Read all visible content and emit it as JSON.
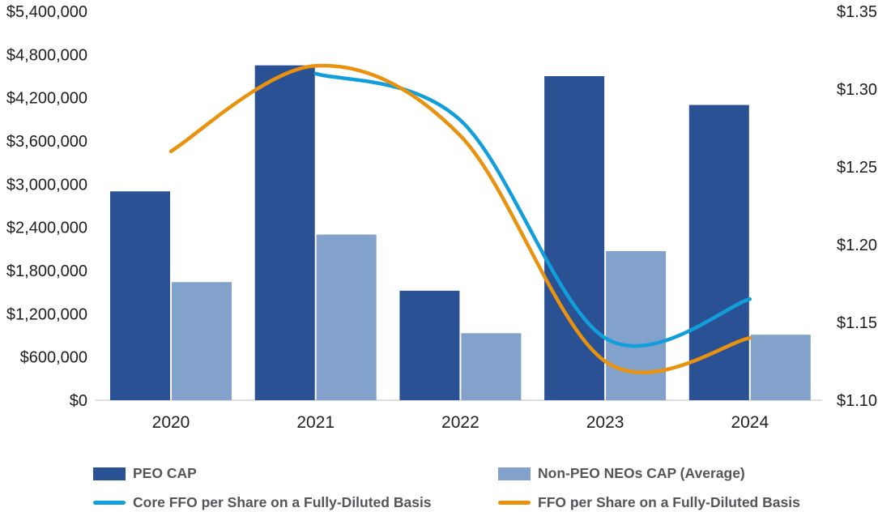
{
  "chart_data": {
    "type": "combo-bar-line",
    "title": "",
    "categories": [
      "2020",
      "2021",
      "2022",
      "2023",
      "2024"
    ],
    "series": [
      {
        "name": "PEO CAP",
        "type": "bar",
        "axis": "left",
        "color": "#2A5193",
        "values": [
          2900000,
          4650000,
          1520000,
          4500000,
          4100000
        ]
      },
      {
        "name": "Non-PEO NEOs CAP (Average)",
        "type": "bar",
        "axis": "left",
        "color": "#82A2CC",
        "values": [
          1640000,
          2300000,
          930000,
          2070000,
          910000
        ]
      },
      {
        "name": "Core FFO per Share on a Fully-Diluted Basis",
        "type": "line",
        "axis": "right",
        "color": "#119FDB",
        "values": [
          null,
          1.31,
          1.28,
          1.14,
          1.165
        ]
      },
      {
        "name": "FFO per Share on a Fully-Diluted Basis",
        "type": "line",
        "axis": "right",
        "color": "#E8920E",
        "values": [
          1.26,
          1.315,
          1.27,
          1.125,
          1.14
        ]
      }
    ],
    "left_axis": {
      "min": 0,
      "max": 5400000,
      "step": 600000,
      "tick_labels": [
        "$0",
        "$600,000",
        "$1,200,000",
        "$1,800,000",
        "$2,400,000",
        "$3,000,000",
        "$3,600,000",
        "$4,200,000",
        "$4,800,000",
        "$5,400,000"
      ]
    },
    "right_axis": {
      "min": 1.1,
      "max": 1.35,
      "step": 0.05,
      "tick_labels": [
        "$1.10",
        "$1.15",
        "$1.20",
        "$1.25",
        "$1.30",
        "$1.35"
      ]
    },
    "grid": false,
    "legend_position": "bottom",
    "colors": {
      "axis_text": "#1E1E1E",
      "x_label_text": "#231F20",
      "baseline": "#D4D4D4"
    }
  },
  "legend": {
    "items": [
      {
        "label": "PEO CAP",
        "swatch": "bar"
      },
      {
        "label": "Non-PEO NEOs CAP (Average)",
        "swatch": "bar"
      },
      {
        "label": "Core FFO per Share on a Fully-Diluted Basis",
        "swatch": "line"
      },
      {
        "label": "FFO per Share on a Fully-Diluted Basis",
        "swatch": "line"
      }
    ]
  }
}
